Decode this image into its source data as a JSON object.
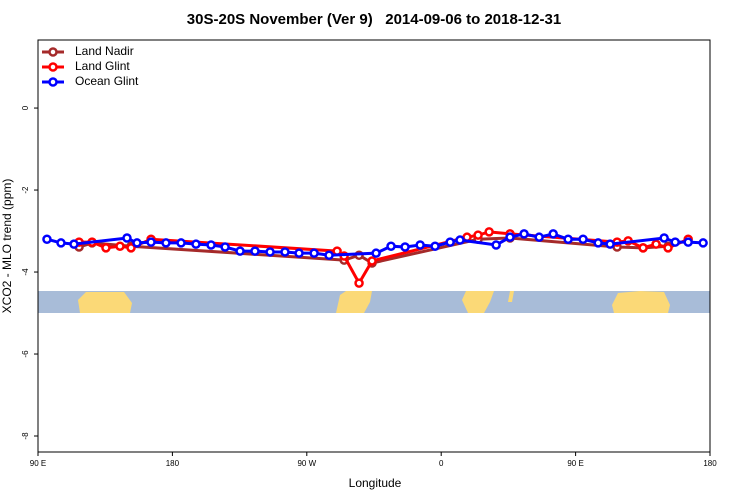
{
  "chart_data": {
    "type": "line",
    "title": "30S-20S November (Ver 9)   2014-09-06 to 2018-12-31",
    "x_label": "Longitude",
    "y_label": "XCO2 - MLO trend (ppm)",
    "xlim": [
      90,
      540
    ],
    "ylim": [
      -8.39,
      1.66
    ],
    "xticks": [
      {
        "value": 90,
        "label": "90 E"
      },
      180,
      {
        "value": 270,
        "label": "90 W"
      },
      {
        "value": 360,
        "label": "0"
      },
      {
        "value": 450,
        "label": "90 E"
      },
      {
        "value": 540,
        "label": "180"
      }
    ],
    "yticks": [
      0,
      -2,
      -4,
      -6,
      -8
    ],
    "legend": "top-left",
    "series": [
      {
        "name": "Land Nadir",
        "color": "#a52a2a",
        "x": [
          117.5,
          126.2,
          152.3,
          295,
          305,
          313.7,
          384.7,
          406.1,
          477.8,
          495.2,
          511.9
        ],
        "values": [
          -3.39,
          -3.29,
          -3.37,
          -3.71,
          -3.59,
          -3.78,
          -3.2,
          -3.17,
          -3.39,
          -3.41,
          -3.37
        ]
      },
      {
        "name": "Land Glint",
        "color": "#ff0000",
        "x": [
          117.5,
          126.2,
          135.5,
          144.9,
          152.3,
          165.7,
          290.3,
          295,
          305,
          313.7,
          377.3,
          384.7,
          392.1,
          406.1,
          477.8,
          485.2,
          495.2,
          503.9,
          511.9,
          525.4
        ],
        "values": [
          -3.27,
          -3.27,
          -3.41,
          -3.37,
          -3.41,
          -3.2,
          -3.49,
          -3.61,
          -4.27,
          -3.73,
          -3.15,
          -3.1,
          -3.02,
          -3.07,
          -3.27,
          -3.24,
          -3.41,
          -3.32,
          -3.41,
          -3.2
        ]
      },
      {
        "name": "Ocean Glint",
        "color": "#0000ff",
        "x": [
          96,
          105.4,
          114.1,
          149.6,
          156.3,
          165.7,
          175.7,
          185.8,
          195.8,
          205.9,
          215.3,
          225.3,
          235.3,
          245.4,
          255.4,
          264.8,
          274.9,
          284.9,
          316.4,
          326.4,
          335.8,
          345.9,
          355.9,
          366,
          372.6,
          396.8,
          406.1,
          415.5,
          425.6,
          435,
          445,
          455,
          465.1,
          473.1,
          509.3,
          516.7,
          525.4,
          535.4
        ],
        "values": [
          -3.2,
          -3.29,
          -3.32,
          -3.17,
          -3.29,
          -3.27,
          -3.29,
          -3.29,
          -3.32,
          -3.34,
          -3.39,
          -3.49,
          -3.49,
          -3.51,
          -3.51,
          -3.54,
          -3.54,
          -3.59,
          -3.54,
          -3.37,
          -3.39,
          -3.34,
          -3.37,
          -3.27,
          -3.22,
          -3.34,
          -3.15,
          -3.07,
          -3.15,
          -3.07,
          -3.2,
          -3.2,
          -3.29,
          -3.32,
          -3.17,
          -3.27,
          -3.27,
          -3.29
        ]
      }
    ]
  }
}
